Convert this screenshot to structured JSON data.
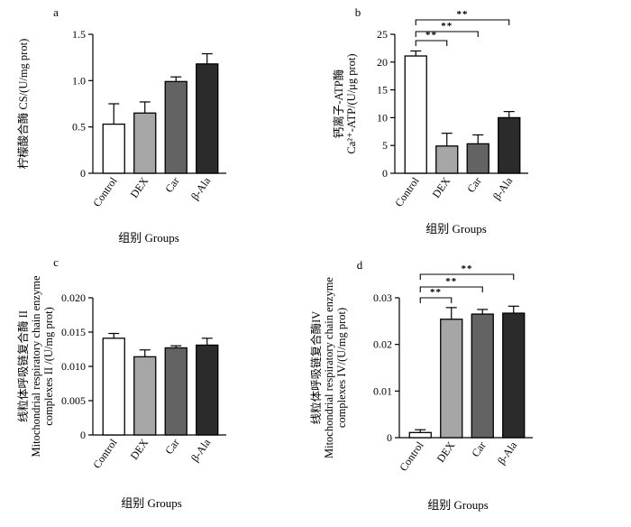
{
  "figure": {
    "xlabel": "组别  Groups",
    "categories": [
      "Control",
      "DEX",
      "Car",
      "β-Ala"
    ],
    "bar_colors": [
      "#ffffff",
      "#a6a6a6",
      "#636363",
      "#2b2b2b"
    ],
    "significance_mark": "**"
  },
  "chart_data": [
    {
      "type": "bar",
      "panel": "a",
      "categories": [
        "Control",
        "DEX",
        "Car",
        "β-Ala"
      ],
      "values": [
        0.53,
        0.65,
        0.99,
        1.18
      ],
      "errors": [
        0.22,
        0.12,
        0.05,
        0.11
      ],
      "ylim": [
        0,
        1.5
      ],
      "yticks": [
        "0",
        "0.5",
        "1.0",
        "1.5"
      ],
      "ytick_values": [
        0,
        0.5,
        1.0,
        1.5
      ],
      "ylabel_lines": [
        "柠檬酸合酶 CS/(U/mg prot)"
      ],
      "xlabel": "组别  Groups",
      "significance": []
    },
    {
      "type": "bar",
      "panel": "b",
      "categories": [
        "Control",
        "DEX",
        "Car",
        "β-Ala"
      ],
      "values": [
        21.1,
        4.9,
        5.3,
        10.0
      ],
      "errors": [
        0.9,
        2.3,
        1.6,
        1.1
      ],
      "ylim": [
        0,
        25
      ],
      "yticks": [
        "0",
        "5",
        "10",
        "15",
        "20",
        "25"
      ],
      "ytick_values": [
        0,
        5,
        10,
        15,
        20,
        25
      ],
      "ylabel_lines": [
        "钙离子-ATP酶",
        "Ca²⁺-ATP/(U/μg prot)"
      ],
      "xlabel": "组别  Groups",
      "significance": [
        {
          "from": 0,
          "to": 1,
          "level": 0
        },
        {
          "from": 0,
          "to": 2,
          "level": 1
        },
        {
          "from": 0,
          "to": 3,
          "level": 2
        }
      ]
    },
    {
      "type": "bar",
      "panel": "c",
      "categories": [
        "Control",
        "DEX",
        "Car",
        "β-Ala"
      ],
      "values": [
        0.0141,
        0.0114,
        0.0127,
        0.0131
      ],
      "errors": [
        0.0007,
        0.001,
        0.0003,
        0.001
      ],
      "ylim": [
        0,
        0.02
      ],
      "yticks": [
        "0",
        "0.005",
        "0.010",
        "0.015",
        "0.020"
      ],
      "ytick_values": [
        0,
        0.005,
        0.01,
        0.015,
        0.02
      ],
      "ylabel_lines": [
        "线粒体呼吸链复合酶 II",
        "Mitochondrial respiratory chain enzyme",
        "complexes II /(U/mg prot)"
      ],
      "xlabel": "组别  Groups",
      "significance": []
    },
    {
      "type": "bar",
      "panel": "d",
      "categories": [
        "Control",
        "DEX",
        "Car",
        "β-Ala"
      ],
      "values": [
        0.0011,
        0.0254,
        0.0265,
        0.0267
      ],
      "errors": [
        0.0006,
        0.0025,
        0.001,
        0.0015
      ],
      "ylim": [
        0,
        0.03
      ],
      "yticks": [
        "0",
        "0.01",
        "0.02",
        "0.03"
      ],
      "ytick_values": [
        0,
        0.01,
        0.02,
        0.03
      ],
      "ylabel_lines": [
        "线粒体呼吸链复合酶IV",
        "Mitochondrial respiratory chain enzyme",
        "complexes IV/(U/mg prot)"
      ],
      "xlabel": "组别  Groups",
      "significance": [
        {
          "from": 0,
          "to": 1,
          "level": 0
        },
        {
          "from": 0,
          "to": 2,
          "level": 1
        },
        {
          "from": 0,
          "to": 3,
          "level": 2
        }
      ]
    }
  ]
}
